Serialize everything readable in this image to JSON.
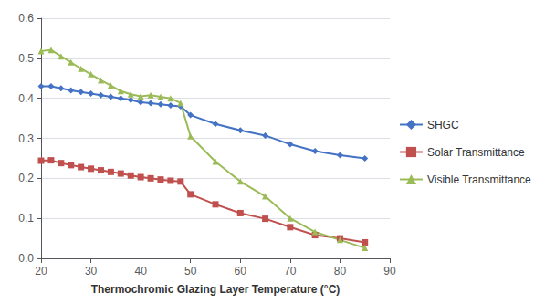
{
  "chart_data": {
    "type": "line",
    "xlabel": "Thermochromic Glazing Layer Temperature (°C)",
    "x": [
      20,
      22,
      24,
      26,
      28,
      30,
      32,
      34,
      36,
      38,
      40,
      42,
      44,
      46,
      48,
      50,
      55,
      60,
      65,
      70,
      75,
      80,
      85
    ],
    "xlim": [
      20,
      90
    ],
    "xticks": [
      20,
      30,
      40,
      50,
      60,
      70,
      80,
      90
    ],
    "ylim": [
      0.0,
      0.6
    ],
    "yticks": [
      {
        "value": 0.0,
        "label": "0.0"
      },
      0.1,
      0.2,
      0.3,
      0.4,
      0.5,
      0.6
    ],
    "grid": true,
    "legend": "right",
    "series": [
      {
        "name": "SHGC",
        "color": "#4472C4",
        "marker": "diamond",
        "values": [
          0.43,
          0.43,
          0.425,
          0.42,
          0.416,
          0.412,
          0.408,
          0.404,
          0.4,
          0.396,
          0.39,
          0.388,
          0.385,
          0.382,
          0.38,
          0.358,
          0.336,
          0.32,
          0.307,
          0.285,
          0.268,
          0.258,
          0.25
        ]
      },
      {
        "name": "Solar Transmittance",
        "color": "#C0504D",
        "marker": "square",
        "values": [
          0.244,
          0.245,
          0.238,
          0.233,
          0.228,
          0.224,
          0.22,
          0.216,
          0.212,
          0.207,
          0.203,
          0.2,
          0.197,
          0.194,
          0.192,
          0.16,
          0.135,
          0.113,
          0.099,
          0.078,
          0.058,
          0.05,
          0.04
        ]
      },
      {
        "name": "Visible Transmittance",
        "color": "#9BBB59",
        "marker": "triangle",
        "values": [
          0.518,
          0.521,
          0.505,
          0.49,
          0.474,
          0.46,
          0.445,
          0.432,
          0.418,
          0.41,
          0.405,
          0.408,
          0.404,
          0.4,
          0.388,
          0.305,
          0.242,
          0.192,
          0.155,
          0.1,
          0.066,
          0.046,
          0.026
        ]
      }
    ]
  }
}
